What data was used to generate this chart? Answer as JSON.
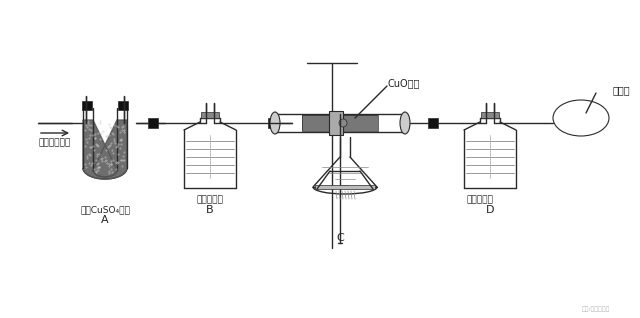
{
  "bg_color": "#ffffff",
  "line_color": "#2a2a2a",
  "labels": {
    "input": "甲烷燃烧产物",
    "A_sub": "无水CuSO₄粉末",
    "A_letter": "A",
    "B_sub": "澄清石灰水",
    "B_letter": "B",
    "C_letter": "C",
    "CuO": "CuO粉末",
    "D_sub": "澄清石灰水",
    "D_letter": "D",
    "balloon": "大气球",
    "watermark": "头条/小破希富化"
  },
  "figsize": [
    6.4,
    3.18
  ],
  "dpi": 100
}
